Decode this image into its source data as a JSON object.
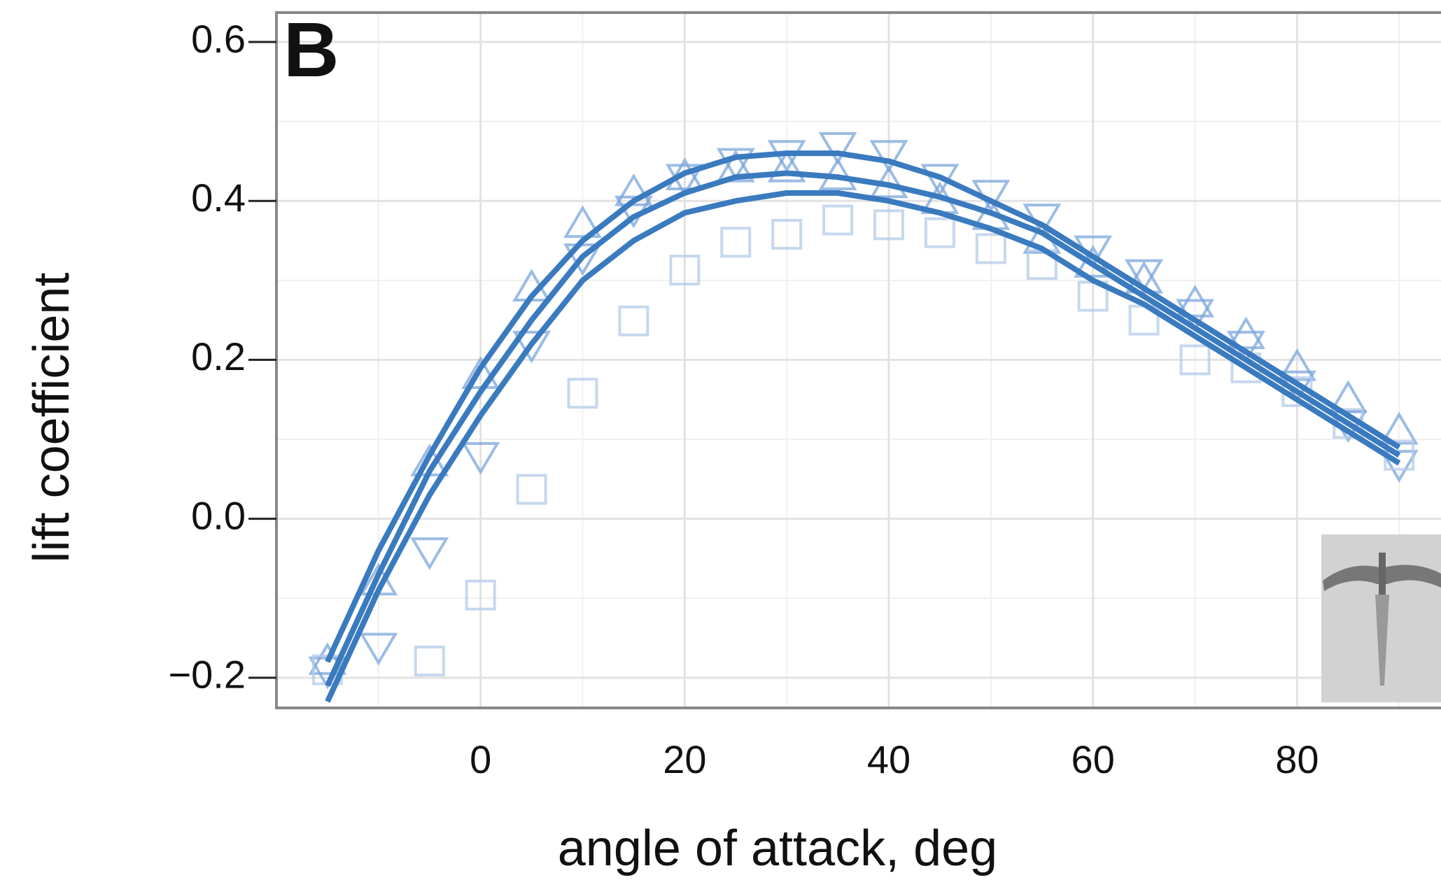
{
  "chart_data": {
    "type": "scatter",
    "panel_label": "B",
    "x_label": "angle of attack, deg",
    "y_label": "lift coefficient",
    "xlim": [
      -20,
      94.1
    ],
    "ylim": [
      -0.238,
      0.637
    ],
    "xticks": [
      0,
      20,
      40,
      60,
      80
    ],
    "yticks": [
      {
        "value": -0.2,
        "label": "−0.2"
      },
      {
        "value": 0,
        "label": "0.0"
      },
      0.2,
      0.4,
      0.6
    ],
    "x_minor_grid": [
      -10,
      10,
      30,
      50,
      70,
      90
    ],
    "y_minor_grid": [
      -0.1,
      0.1,
      0.3,
      0.5
    ],
    "grid": true,
    "series": [
      {
        "type": "scatter",
        "marker": "triangle-up",
        "color": "#7aa6db",
        "x": [
          -15,
          -10,
          -5,
          0,
          5,
          10,
          15,
          20,
          25,
          30,
          35,
          40,
          45,
          50,
          55,
          60,
          65,
          70,
          75,
          80,
          85,
          90
        ],
        "values": [
          -0.18,
          -0.08,
          0.07,
          0.18,
          0.29,
          0.37,
          0.41,
          0.43,
          0.44,
          0.44,
          0.43,
          0.42,
          0.4,
          0.38,
          0.35,
          0.32,
          0.3,
          0.27,
          0.23,
          0.19,
          0.15,
          0.11
        ]
      },
      {
        "type": "scatter",
        "marker": "triangle-down",
        "color": "#7aa6db",
        "x": [
          -15,
          -10,
          -5,
          0,
          5,
          10,
          15,
          20,
          25,
          30,
          35,
          40,
          45,
          50,
          55,
          60,
          65,
          70,
          75,
          80,
          85,
          90
        ],
        "values": [
          -0.19,
          -0.16,
          -0.04,
          0.08,
          0.22,
          0.33,
          0.39,
          0.43,
          0.45,
          0.46,
          0.47,
          0.46,
          0.43,
          0.41,
          0.38,
          0.34,
          0.31,
          0.26,
          0.22,
          0.17,
          0.12,
          0.07
        ]
      },
      {
        "type": "scatter",
        "marker": "square",
        "color": "#b3cbe8",
        "x": [
          -15,
          -5,
          0,
          5,
          10,
          15,
          20,
          25,
          30,
          35,
          40,
          45,
          50,
          55,
          60,
          65,
          70,
          75,
          80,
          85,
          90
        ],
        "values": [
          -0.19,
          -0.179,
          -0.096,
          0.037,
          0.158,
          0.249,
          0.313,
          0.348,
          0.358,
          0.376,
          0.37,
          0.36,
          0.34,
          0.32,
          0.28,
          0.25,
          0.2,
          0.19,
          0.16,
          0.12,
          0.08
        ]
      },
      {
        "type": "line",
        "color": "#3a7abf",
        "x": [
          -15,
          -10,
          -5,
          0,
          5,
          10,
          15,
          20,
          25,
          30,
          35,
          40,
          45,
          50,
          55,
          60,
          65,
          70,
          75,
          80,
          85,
          90
        ],
        "values": [
          -0.18,
          -0.04,
          0.08,
          0.19,
          0.28,
          0.35,
          0.4,
          0.435,
          0.455,
          0.46,
          0.46,
          0.45,
          0.43,
          0.4,
          0.37,
          0.33,
          0.29,
          0.25,
          0.21,
          0.17,
          0.13,
          0.09
        ]
      },
      {
        "type": "line",
        "color": "#3a7abf",
        "x": [
          -15,
          -10,
          -5,
          0,
          5,
          10,
          15,
          20,
          25,
          30,
          35,
          40,
          45,
          50,
          55,
          60,
          65,
          70,
          75,
          80,
          85,
          90
        ],
        "values": [
          -0.21,
          -0.07,
          0.06,
          0.16,
          0.25,
          0.33,
          0.38,
          0.41,
          0.43,
          0.435,
          0.43,
          0.42,
          0.405,
          0.385,
          0.36,
          0.32,
          0.28,
          0.24,
          0.2,
          0.16,
          0.12,
          0.08
        ]
      },
      {
        "type": "line",
        "color": "#3a7abf",
        "x": [
          -15,
          -10,
          -5,
          0,
          5,
          10,
          15,
          20,
          25,
          30,
          35,
          40,
          45,
          50,
          55,
          60,
          65,
          70,
          75,
          80,
          85,
          90
        ],
        "values": [
          -0.23,
          -0.09,
          0.03,
          0.13,
          0.22,
          0.3,
          0.35,
          0.385,
          0.4,
          0.41,
          0.41,
          0.4,
          0.385,
          0.365,
          0.34,
          0.3,
          0.27,
          0.23,
          0.19,
          0.15,
          0.11,
          0.07
        ]
      }
    ]
  }
}
